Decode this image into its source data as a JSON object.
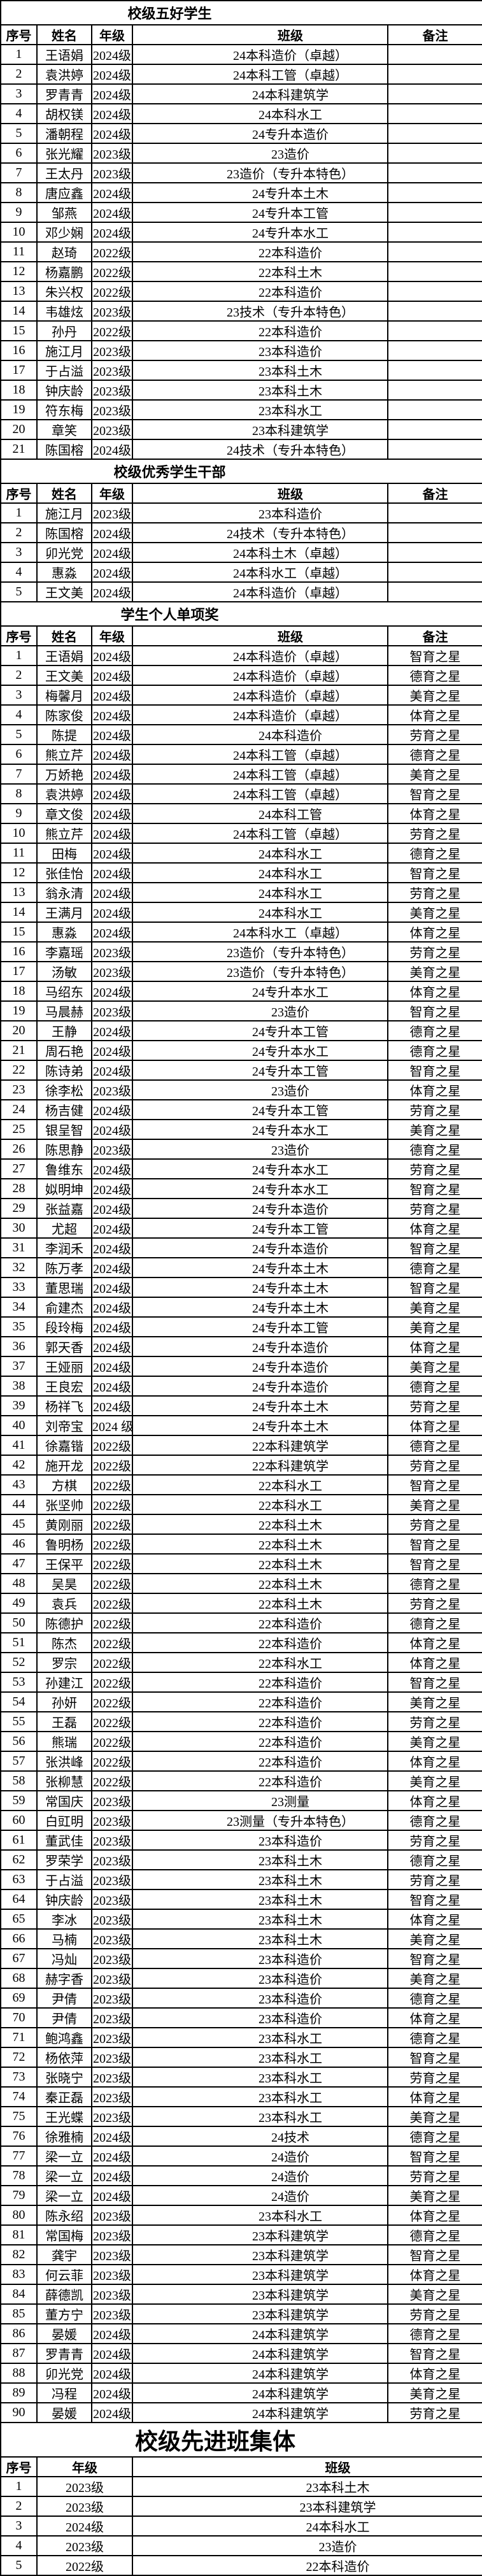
{
  "document": {
    "tables": [
      {
        "id": "five-good-students",
        "title": "校级五好学生",
        "headers": [
          "序号",
          "姓名",
          "年级",
          "班级",
          "备注"
        ],
        "rows": [
          [
            "1",
            "王语娟",
            "2024级",
            "24本科造价（卓越）",
            ""
          ],
          [
            "2",
            "袁洪婷",
            "2024级",
            "24本科工管（卓越）",
            ""
          ],
          [
            "3",
            "罗青青",
            "2024级",
            "24本科建筑学",
            ""
          ],
          [
            "4",
            "胡权镁",
            "2024级",
            "24本科水工",
            ""
          ],
          [
            "5",
            "潘朝程",
            "2024级",
            "24专升本造价",
            ""
          ],
          [
            "6",
            "张光耀",
            "2023级",
            "23造价",
            ""
          ],
          [
            "7",
            "王太丹",
            "2023级",
            "23造价（专升本特色）",
            ""
          ],
          [
            "8",
            "唐应鑫",
            "2024级",
            "24专升本土木",
            ""
          ],
          [
            "9",
            "邹燕",
            "2024级",
            "24专升本工管",
            ""
          ],
          [
            "10",
            "邓少娴",
            "2024级",
            "24专升本水工",
            ""
          ],
          [
            "11",
            "赵琦",
            "2022级",
            "22本科造价",
            ""
          ],
          [
            "12",
            "杨嘉鹏",
            "2022级",
            "22本科土木",
            ""
          ],
          [
            "13",
            "朱兴权",
            "2022级",
            "22本科造价",
            ""
          ],
          [
            "14",
            "韦雄炫",
            "2023级",
            "23技术（专升本特色）",
            ""
          ],
          [
            "15",
            "孙丹",
            "2022级",
            "22本科造价",
            ""
          ],
          [
            "16",
            "施江月",
            "2023级",
            "23本科造价",
            ""
          ],
          [
            "17",
            "于占溢",
            "2023级",
            "23本科土木",
            ""
          ],
          [
            "18",
            "钟庆龄",
            "2023级",
            "23本科土木",
            ""
          ],
          [
            "19",
            "符东梅",
            "2023级",
            "23本科水工",
            ""
          ],
          [
            "20",
            "章笑",
            "2023级",
            "23本科建筑学",
            ""
          ],
          [
            "21",
            "陈国榕",
            "2024级",
            "24技术（专升本特色）",
            ""
          ]
        ]
      },
      {
        "id": "outstanding-student-cadres",
        "title": "校级优秀学生干部",
        "headers": [
          "序号",
          "姓名",
          "年级",
          "班级",
          "备注"
        ],
        "rows": [
          [
            "1",
            "施江月",
            "2023级",
            "23本科造价",
            ""
          ],
          [
            "2",
            "陈国榕",
            "2024级",
            "24技术（专升本特色）",
            ""
          ],
          [
            "3",
            "卯光党",
            "2024级",
            "24本科土木（卓越）",
            ""
          ],
          [
            "4",
            "惠淼",
            "2024级",
            "24本科水工（卓越）",
            ""
          ],
          [
            "5",
            "王文美",
            "2024级",
            "24本科造价（卓越）",
            ""
          ]
        ]
      },
      {
        "id": "individual-awards",
        "title": "学生个人单项奖",
        "headers": [
          "序号",
          "姓名",
          "年级",
          "班级",
          "备注"
        ],
        "rows": [
          [
            "1",
            "王语娟",
            "2024级",
            "24本科造价（卓越）",
            "智育之星"
          ],
          [
            "2",
            "王文美",
            "2024级",
            "24本科造价（卓越）",
            "德育之星"
          ],
          [
            "3",
            "梅馨月",
            "2024级",
            "24本科造价（卓越）",
            "美育之星"
          ],
          [
            "4",
            "陈家俊",
            "2024级",
            "24本科造价（卓越）",
            "体育之星"
          ],
          [
            "5",
            "陈提",
            "2024级",
            "24本科造价",
            "劳育之星"
          ],
          [
            "6",
            "熊立芹",
            "2024级",
            "24本科工管（卓越）",
            "德育之星"
          ],
          [
            "7",
            "万娇艳",
            "2024级",
            "24本科工管（卓越）",
            "美育之星"
          ],
          [
            "8",
            "袁洪婷",
            "2024级",
            "24本科工管（卓越）",
            "智育之星"
          ],
          [
            "9",
            "章文俊",
            "2024级",
            "24本科工管",
            "体育之星"
          ],
          [
            "10",
            "熊立芹",
            "2024级",
            "24本科工管（卓越）",
            "劳育之星"
          ],
          [
            "11",
            "田梅",
            "2024级",
            "24本科水工",
            "德育之星"
          ],
          [
            "12",
            "张佳怡",
            "2024级",
            "24本科水工",
            "智育之星"
          ],
          [
            "13",
            "翁永清",
            "2024级",
            "24本科水工",
            "劳育之星"
          ],
          [
            "14",
            "王满月",
            "2024级",
            "24本科水工",
            "美育之星"
          ],
          [
            "15",
            "惠淼",
            "2024级",
            "24本科水工（卓越）",
            "体育之星"
          ],
          [
            "16",
            "李嘉瑶",
            "2023级",
            "23造价（专升本特色）",
            "劳育之星"
          ],
          [
            "17",
            "汤敏",
            "2023级",
            "23造价（专升本特色）",
            "美育之星"
          ],
          [
            "18",
            "马绍东",
            "2024级",
            "24专升本水工",
            "体育之星"
          ],
          [
            "19",
            "马晨赫",
            "2023级",
            "23造价",
            "智育之星"
          ],
          [
            "20",
            "王静",
            "2024级",
            "24专升本工管",
            "德育之星"
          ],
          [
            "21",
            "周石艳",
            "2024级",
            "24专升本水工",
            "德育之星"
          ],
          [
            "22",
            "陈诗弟",
            "2024级",
            "24专升本工管",
            "智育之星"
          ],
          [
            "23",
            "徐李松",
            "2023级",
            "23造价",
            "体育之星"
          ],
          [
            "24",
            "杨吉健",
            "2024级",
            "24专升本工管",
            "劳育之星"
          ],
          [
            "25",
            "银呈智",
            "2024级",
            "24专升本水工",
            "美育之星"
          ],
          [
            "26",
            "陈思静",
            "2023级",
            "23造价",
            "德育之星"
          ],
          [
            "27",
            "鲁维东",
            "2024级",
            "24专升本水工",
            "劳育之星"
          ],
          [
            "28",
            "姒明坤",
            "2024级",
            "24专升本水工",
            "智育之星"
          ],
          [
            "29",
            "张益嘉",
            "2024级",
            "24专升本造价",
            "劳育之星"
          ],
          [
            "30",
            "尤超",
            "2024级",
            "24专升本工管",
            "体育之星"
          ],
          [
            "31",
            "李润禾",
            "2024级",
            "24专升本造价",
            "智育之星"
          ],
          [
            "32",
            "陈万孝",
            "2024级",
            "24专升本土木",
            "德育之星"
          ],
          [
            "33",
            "董思瑞",
            "2024级",
            "24专升本土木",
            "智育之星"
          ],
          [
            "34",
            "俞建杰",
            "2024级",
            "24专升本土木",
            "美育之星"
          ],
          [
            "35",
            "段玲梅",
            "2024级",
            "24专升本工管",
            "美育之星"
          ],
          [
            "36",
            "郭天香",
            "2024级",
            "24专升本造价",
            "体育之星"
          ],
          [
            "37",
            "王娅丽",
            "2024级",
            "24专升本造价",
            "美育之星"
          ],
          [
            "38",
            "王良宏",
            "2024级",
            "24专升本造价",
            "德育之星"
          ],
          [
            "39",
            "杨祥飞",
            "2024级",
            "24专升本土木",
            "劳育之星"
          ],
          [
            "40",
            "刘帝宝",
            "2024 级",
            "24专升本土木",
            "体育之星"
          ],
          [
            "41",
            "徐嘉锴",
            "2022级",
            "22本科建筑学",
            "德育之星"
          ],
          [
            "42",
            "施开龙",
            "2022级",
            "22本科建筑学",
            "劳育之星"
          ],
          [
            "43",
            "方棋",
            "2022级",
            "22本科水工",
            "智育之星"
          ],
          [
            "44",
            "张坚帅",
            "2022级",
            "22本科水工",
            "美育之星"
          ],
          [
            "45",
            "黄刚丽",
            "2022级",
            "22本科土木",
            "劳育之星"
          ],
          [
            "46",
            "鲁明杨",
            "2022级",
            "22本科土木",
            "智育之星"
          ],
          [
            "47",
            "王保平",
            "2022级",
            "22本科土木",
            "智育之星"
          ],
          [
            "48",
            "吴昊",
            "2022级",
            "22本科土木",
            "德育之星"
          ],
          [
            "49",
            "袁兵",
            "2022级",
            "22本科土木",
            "劳育之星"
          ],
          [
            "50",
            "陈德护",
            "2022级",
            "22本科造价",
            "德育之星"
          ],
          [
            "51",
            "陈杰",
            "2022级",
            "22本科造价",
            "体育之星"
          ],
          [
            "52",
            "罗宗",
            "2022级",
            "22本科水工",
            "体育之星"
          ],
          [
            "53",
            "孙建江",
            "2022级",
            "22本科造价",
            "智育之星"
          ],
          [
            "54",
            "孙妍",
            "2022级",
            "22本科造价",
            "美育之星"
          ],
          [
            "55",
            "王磊",
            "2022级",
            "22本科造价",
            "劳育之星"
          ],
          [
            "56",
            "熊瑞",
            "2022级",
            "22本科造价",
            "美育之星"
          ],
          [
            "57",
            "张洪峰",
            "2022级",
            "22本科造价",
            "体育之星"
          ],
          [
            "58",
            "张柳慧",
            "2022级",
            "22本科造价",
            "美育之星"
          ],
          [
            "59",
            "常国庆",
            "2023级",
            "23测量",
            "体育之星"
          ],
          [
            "60",
            "白豇明",
            "2023级",
            "23测量（专升本特色）",
            "德育之星"
          ],
          [
            "61",
            "董武佳",
            "2023级",
            "23本科造价",
            "劳育之星"
          ],
          [
            "62",
            "罗荣学",
            "2023级",
            "23本科土木",
            "德育之星"
          ],
          [
            "63",
            "于占溢",
            "2023级",
            "23本科土木",
            "劳育之星"
          ],
          [
            "64",
            "钟庆龄",
            "2023级",
            "23本科土木",
            "智育之星"
          ],
          [
            "65",
            "李冰",
            "2023级",
            "23本科土木",
            "体育之星"
          ],
          [
            "66",
            "马楠",
            "2023级",
            "23本科土木",
            "美育之星"
          ],
          [
            "67",
            "冯灿",
            "2023级",
            "23本科造价",
            "智育之星"
          ],
          [
            "68",
            "赫字香",
            "2023级",
            "23本科造价",
            "美育之星"
          ],
          [
            "69",
            "尹倩",
            "2023级",
            "23本科造价",
            "德育之星"
          ],
          [
            "70",
            "尹倩",
            "2023级",
            "23本科造价",
            "体育之星"
          ],
          [
            "71",
            "鲍鸿鑫",
            "2023级",
            "23本科水工",
            "德育之星"
          ],
          [
            "72",
            "杨依萍",
            "2023级",
            "23本科水工",
            "智育之星"
          ],
          [
            "73",
            "张晓宁",
            "2023级",
            "23本科水工",
            "劳育之星"
          ],
          [
            "74",
            "秦正磊",
            "2023级",
            "23本科水工",
            "体育之星"
          ],
          [
            "75",
            "王光蝶",
            "2023级",
            "23本科水工",
            "美育之星"
          ],
          [
            "76",
            "徐雅楠",
            "2024级",
            "24技术",
            "德育之星"
          ],
          [
            "77",
            "梁一立",
            "2024级",
            "24造价",
            "智育之星"
          ],
          [
            "78",
            "梁一立",
            "2024级",
            "24造价",
            "劳育之星"
          ],
          [
            "79",
            "梁一立",
            "2024级",
            "24造价",
            "美育之星"
          ],
          [
            "80",
            "陈永绍",
            "2023级",
            "23本科水工",
            "体育之星"
          ],
          [
            "81",
            "常国梅",
            "2023级",
            "23本科建筑学",
            "德育之星"
          ],
          [
            "82",
            "龚宇",
            "2023级",
            "23本科建筑学",
            "智育之星"
          ],
          [
            "83",
            "何云菲",
            "2023级",
            "23本科建筑学",
            "体育之星"
          ],
          [
            "84",
            "薛德凯",
            "2023级",
            "23本科建筑学",
            "美育之星"
          ],
          [
            "85",
            "董方宁",
            "2023级",
            "23本科建筑学",
            "劳育之星"
          ],
          [
            "86",
            "晏媛",
            "2024级",
            "24本科建筑学",
            "德育之星"
          ],
          [
            "87",
            "罗青青",
            "2024级",
            "24本科建筑学",
            "智育之星"
          ],
          [
            "88",
            "卯光党",
            "2024级",
            "24本科建筑学",
            "体育之星"
          ],
          [
            "89",
            "冯程",
            "2024级",
            "24本科建筑学",
            "美育之星"
          ],
          [
            "90",
            "晏媛",
            "2024级",
            "24本科建筑学",
            "劳育之星"
          ]
        ]
      },
      {
        "id": "advanced-class-collectives",
        "title": "校级先进班集体",
        "headers": [
          "序号",
          "年级",
          "班级"
        ],
        "rows": [
          [
            "1",
            "2023级",
            "23本科土木"
          ],
          [
            "2",
            "2023级",
            "23本科建筑学"
          ],
          [
            "3",
            "2024级",
            "24本科水工"
          ],
          [
            "4",
            "2023级",
            "23造价"
          ],
          [
            "5",
            "2022级",
            "22本科造价"
          ]
        ]
      }
    ]
  }
}
